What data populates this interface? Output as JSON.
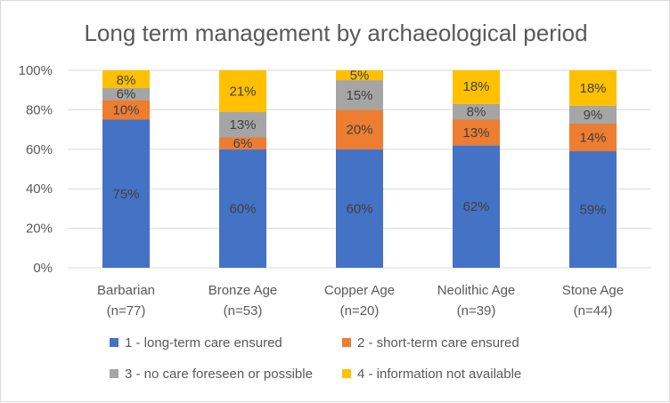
{
  "chart_data": {
    "type": "bar",
    "stacked": true,
    "title": "Long term management by archaeological period",
    "categories": [
      [
        "Barbarian",
        "(n=77)"
      ],
      [
        "Bronze Age",
        "(n=53)"
      ],
      [
        "Copper Age",
        "(n=20)"
      ],
      [
        "Neolithic Age",
        "(n=39)"
      ],
      [
        "Stone Age",
        "(n=44)"
      ]
    ],
    "series": [
      {
        "name": "1 - long-term care ensured",
        "color": "#4472c4",
        "values": [
          75,
          60,
          60,
          62,
          59
        ],
        "labels": [
          "75%",
          "60%",
          "60%",
          "62%",
          "59%"
        ]
      },
      {
        "name": "2 - short-term care ensured",
        "color": "#ed7d31",
        "values": [
          10,
          6,
          20,
          13,
          14
        ],
        "labels": [
          "10%",
          "6%",
          "20%",
          "13%",
          "14%"
        ]
      },
      {
        "name": "3 - no care foreseen or possible",
        "color": "#a5a5a5",
        "values": [
          6,
          13,
          15,
          8,
          9
        ],
        "labels": [
          "6%",
          "13%",
          "15%",
          "8%",
          "9%"
        ]
      },
      {
        "name": "4 - information not available",
        "color": "#ffc000",
        "values": [
          8,
          21,
          5,
          18,
          18
        ],
        "labels": [
          "8%",
          "21%",
          "5%",
          "18%",
          "18%"
        ]
      }
    ],
    "yticks": [
      "0%",
      "20%",
      "40%",
      "60%",
      "80%",
      "100%"
    ],
    "ylim": [
      0,
      100
    ],
    "grid": true,
    "legend_position": "bottom"
  }
}
